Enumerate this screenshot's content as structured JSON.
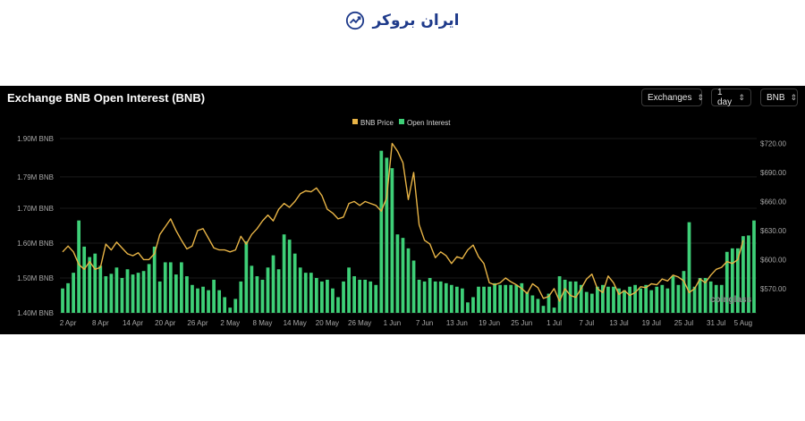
{
  "brand": {
    "name": "ایران بروکر",
    "logo_icon": "chart-arrow-icon",
    "color": "#1e3a8a"
  },
  "header": {
    "title": "Exchange BNB Open Interest (BNB)",
    "controls": {
      "exchanges": "Exchanges",
      "interval": "1 day",
      "asset": "BNB"
    }
  },
  "watermark": "coinglass",
  "colors": {
    "bars": "#3ecf77",
    "price": "#e8b446",
    "background": "#000000"
  },
  "chart_data": {
    "type": "bar",
    "legend": [
      "BNB Price",
      "Open Interest"
    ],
    "legend_position": "top-center",
    "left_axis": {
      "ticks": [
        "1.40M BNB",
        "1.50M BNB",
        "1.60M BNB",
        "1.70M BNB",
        "1.79M BNB",
        "1.90M BNB"
      ],
      "unit": "BNB"
    },
    "right_axis": {
      "ticks": [
        "$570.00",
        "$600.00",
        "$630.00",
        "$660.00",
        "$690.00",
        "$720.00"
      ],
      "unit": "USD"
    },
    "x_tick_labels": [
      "2 Apr",
      "8 Apr",
      "14 Apr",
      "20 Apr",
      "26 Apr",
      "2 May",
      "8 May",
      "14 May",
      "20 May",
      "26 May",
      "1 Jun",
      "7 Jun",
      "13 Jun",
      "19 Jun",
      "25 Jun",
      "1 Jul",
      "7 Jul",
      "13 Jul",
      "19 Jul",
      "25 Jul",
      "31 Jul",
      "5 Aug"
    ],
    "x_tick_day_index": [
      1,
      7,
      13,
      19,
      25,
      31,
      37,
      43,
      49,
      55,
      61,
      67,
      73,
      79,
      85,
      91,
      97,
      103,
      109,
      115,
      121,
      126
    ],
    "ylim_left": [
      1400000,
      1900000
    ],
    "ylim_right": [
      545,
      725
    ],
    "series": [
      {
        "name": "Open Interest",
        "kind": "bar",
        "axis": "left",
        "values": [
          1470000,
          1485000,
          1515000,
          1665000,
          1590000,
          1560000,
          1570000,
          1535000,
          1505000,
          1512000,
          1530000,
          1500000,
          1525000,
          1510000,
          1515000,
          1520000,
          1540000,
          1590000,
          1490000,
          1545000,
          1545000,
          1510000,
          1545000,
          1505000,
          1480000,
          1470000,
          1475000,
          1465000,
          1495000,
          1465000,
          1445000,
          1415000,
          1440000,
          1490000,
          1605000,
          1535000,
          1505000,
          1495000,
          1530000,
          1565000,
          1525000,
          1625000,
          1610000,
          1570000,
          1530000,
          1515000,
          1515000,
          1500000,
          1490000,
          1495000,
          1470000,
          1445000,
          1490000,
          1530000,
          1505000,
          1495000,
          1495000,
          1490000,
          1480000,
          1865000,
          1845000,
          1815000,
          1625000,
          1615000,
          1585000,
          1550000,
          1495000,
          1490000,
          1500000,
          1490000,
          1490000,
          1485000,
          1480000,
          1475000,
          1470000,
          1430000,
          1445000,
          1475000,
          1475000,
          1475000,
          1485000,
          1480000,
          1480000,
          1480000,
          1480000,
          1485000,
          1460000,
          1450000,
          1440000,
          1420000,
          1455000,
          1415000,
          1505000,
          1495000,
          1490000,
          1490000,
          1480000,
          1460000,
          1455000,
          1475000,
          1480000,
          1475000,
          1475000,
          1470000,
          1465000,
          1475000,
          1480000,
          1470000,
          1480000,
          1465000,
          1475000,
          1480000,
          1470000,
          1505000,
          1480000,
          1520000,
          1660000,
          1475000,
          1500000,
          1500000,
          1490000,
          1480000,
          1480000,
          1575000,
          1585000,
          1585000,
          1620000,
          1622000,
          1665000
        ]
      },
      {
        "name": "BNB Price",
        "kind": "line",
        "axis": "right",
        "values": [
          608,
          614,
          608,
          595,
          590,
          598,
          590,
          592,
          616,
          610,
          618,
          612,
          606,
          604,
          607,
          600,
          600,
          606,
          626,
          634,
          642,
          630,
          620,
          611,
          614,
          630,
          632,
          622,
          612,
          610,
          610,
          608,
          610,
          624,
          616,
          626,
          632,
          640,
          646,
          640,
          652,
          658,
          654,
          660,
          668,
          671,
          670,
          674,
          666,
          652,
          648,
          642,
          644,
          658,
          660,
          656,
          660,
          658,
          656,
          650,
          664,
          720,
          712,
          700,
          662,
          690,
          636,
          620,
          616,
          602,
          608,
          604,
          596,
          603,
          601,
          610,
          615,
          603,
          596,
          576,
          574,
          576,
          581,
          577,
          574,
          570,
          565,
          575,
          571,
          560,
          562,
          570,
          557,
          570,
          563,
          561,
          570,
          580,
          585,
          570,
          566,
          583,
          576,
          564,
          568,
          563,
          566,
          572,
          571,
          575,
          574,
          580,
          578,
          584,
          582,
          578,
          566,
          570,
          580,
          576,
          584,
          590,
          592,
          598,
          596,
          600,
          620
        ]
      }
    ]
  }
}
